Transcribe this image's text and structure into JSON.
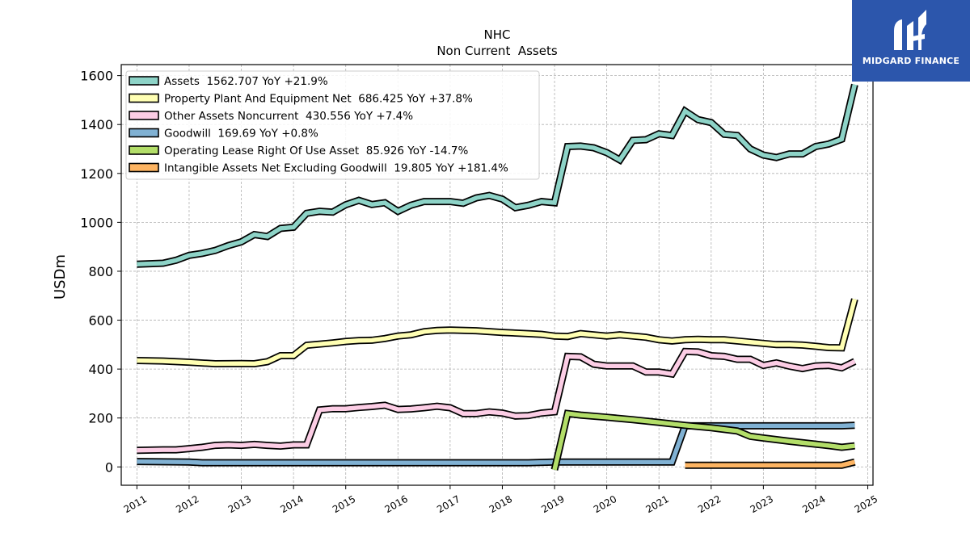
{
  "brand": {
    "name": "MIDGARD FINANCE",
    "bg_color": "#2c56ac"
  },
  "chart_data": {
    "type": "line",
    "title": "NHC",
    "subtitle": "Non Current  Assets",
    "ylabel": "USDm",
    "xlabel": "",
    "xlim": [
      2010.7,
      2025.1
    ],
    "ylim": [
      -75,
      1645
    ],
    "yticks": [
      0,
      200,
      400,
      600,
      800,
      1000,
      1200,
      1400,
      1600
    ],
    "xticks": [
      "2011",
      "2012",
      "2013",
      "2014",
      "2015",
      "2016",
      "2017",
      "2018",
      "2019",
      "2020",
      "2021",
      "2022",
      "2023",
      "2024",
      "2025"
    ],
    "grid": true,
    "legend_position": "top-left",
    "series": [
      {
        "name": "Assets",
        "legend": "Assets  1562.707 YoY +21.9%",
        "color": "#8dd3c7",
        "points": [
          [
            2011.0,
            829
          ],
          [
            2011.5,
            833
          ],
          [
            2011.75,
            845
          ],
          [
            2012.0,
            865
          ],
          [
            2012.25,
            873
          ],
          [
            2012.5,
            885
          ],
          [
            2012.75,
            905
          ],
          [
            2013.0,
            920
          ],
          [
            2013.25,
            950
          ],
          [
            2013.5,
            942
          ],
          [
            2013.75,
            975
          ],
          [
            2014.0,
            980
          ],
          [
            2014.25,
            1037
          ],
          [
            2014.5,
            1045
          ],
          [
            2014.75,
            1042
          ],
          [
            2015.0,
            1072
          ],
          [
            2015.25,
            1090
          ],
          [
            2015.5,
            1073
          ],
          [
            2015.75,
            1080
          ],
          [
            2016.0,
            1045
          ],
          [
            2016.25,
            1070
          ],
          [
            2016.5,
            1085
          ],
          [
            2016.75,
            1085
          ],
          [
            2017.0,
            1085
          ],
          [
            2017.25,
            1078
          ],
          [
            2017.5,
            1100
          ],
          [
            2017.75,
            1110
          ],
          [
            2018.0,
            1095
          ],
          [
            2018.25,
            1060
          ],
          [
            2018.5,
            1070
          ],
          [
            2018.75,
            1085
          ],
          [
            2019.0,
            1080
          ],
          [
            2019.25,
            1310
          ],
          [
            2019.5,
            1312
          ],
          [
            2019.75,
            1305
          ],
          [
            2020.0,
            1285
          ],
          [
            2020.25,
            1255
          ],
          [
            2020.5,
            1335
          ],
          [
            2020.75,
            1338
          ],
          [
            2021.0,
            1362
          ],
          [
            2021.25,
            1355
          ],
          [
            2021.5,
            1455
          ],
          [
            2021.75,
            1420
          ],
          [
            2022.0,
            1408
          ],
          [
            2022.25,
            1360
          ],
          [
            2022.5,
            1355
          ],
          [
            2022.75,
            1300
          ],
          [
            2023.0,
            1275
          ],
          [
            2023.25,
            1265
          ],
          [
            2023.5,
            1280
          ],
          [
            2023.75,
            1280
          ],
          [
            2024.0,
            1310
          ],
          [
            2024.25,
            1320
          ],
          [
            2024.5,
            1340
          ],
          [
            2024.75,
            1563
          ]
        ]
      },
      {
        "name": "Property Plant And Equipment Net",
        "legend": "Property Plant And Equipment Net  686.425 YoY +37.8%",
        "color": "#ffffb3",
        "points": [
          [
            2011.0,
            435
          ],
          [
            2011.5,
            433
          ],
          [
            2012.0,
            428
          ],
          [
            2012.5,
            422
          ],
          [
            2013.0,
            423
          ],
          [
            2013.25,
            422
          ],
          [
            2013.5,
            430
          ],
          [
            2013.75,
            455
          ],
          [
            2014.0,
            455
          ],
          [
            2014.25,
            497
          ],
          [
            2014.5,
            502
          ],
          [
            2014.75,
            507
          ],
          [
            2015.0,
            513
          ],
          [
            2015.25,
            517
          ],
          [
            2015.5,
            518
          ],
          [
            2015.75,
            525
          ],
          [
            2016.0,
            535
          ],
          [
            2016.25,
            540
          ],
          [
            2016.5,
            553
          ],
          [
            2016.75,
            558
          ],
          [
            2017.0,
            560
          ],
          [
            2017.5,
            557
          ],
          [
            2018.0,
            550
          ],
          [
            2018.5,
            545
          ],
          [
            2018.75,
            542
          ],
          [
            2019.0,
            535
          ],
          [
            2019.25,
            533
          ],
          [
            2019.5,
            545
          ],
          [
            2019.75,
            540
          ],
          [
            2020.0,
            535
          ],
          [
            2020.25,
            540
          ],
          [
            2020.5,
            535
          ],
          [
            2020.75,
            530
          ],
          [
            2021.0,
            520
          ],
          [
            2021.25,
            515
          ],
          [
            2021.5,
            520
          ],
          [
            2021.75,
            522
          ],
          [
            2022.0,
            520
          ],
          [
            2022.25,
            520
          ],
          [
            2022.5,
            515
          ],
          [
            2022.75,
            510
          ],
          [
            2023.0,
            505
          ],
          [
            2023.25,
            500
          ],
          [
            2023.5,
            500
          ],
          [
            2023.75,
            498
          ],
          [
            2024.0,
            493
          ],
          [
            2024.25,
            488
          ],
          [
            2024.5,
            487
          ],
          [
            2024.75,
            686
          ]
        ]
      },
      {
        "name": "Other Assets Noncurrent",
        "legend": "Other Assets Noncurrent  430.556 YoY +7.4%",
        "color": "#fccde5",
        "points": [
          [
            2011.0,
            68
          ],
          [
            2011.5,
            70
          ],
          [
            2011.75,
            70
          ],
          [
            2012.0,
            75
          ],
          [
            2012.25,
            80
          ],
          [
            2012.5,
            88
          ],
          [
            2012.75,
            90
          ],
          [
            2013.0,
            88
          ],
          [
            2013.25,
            92
          ],
          [
            2013.5,
            88
          ],
          [
            2013.75,
            85
          ],
          [
            2014.0,
            90
          ],
          [
            2014.25,
            90
          ],
          [
            2014.5,
            233
          ],
          [
            2014.75,
            238
          ],
          [
            2015.0,
            238
          ],
          [
            2015.25,
            243
          ],
          [
            2015.5,
            247
          ],
          [
            2015.75,
            252
          ],
          [
            2016.0,
            235
          ],
          [
            2016.25,
            237
          ],
          [
            2016.5,
            242
          ],
          [
            2016.75,
            248
          ],
          [
            2017.0,
            242
          ],
          [
            2017.25,
            218
          ],
          [
            2017.5,
            218
          ],
          [
            2017.75,
            225
          ],
          [
            2018.0,
            220
          ],
          [
            2018.25,
            208
          ],
          [
            2018.5,
            210
          ],
          [
            2018.75,
            220
          ],
          [
            2019.0,
            225
          ],
          [
            2019.25,
            452
          ],
          [
            2019.5,
            450
          ],
          [
            2019.75,
            420
          ],
          [
            2020.0,
            413
          ],
          [
            2020.25,
            413
          ],
          [
            2020.5,
            413
          ],
          [
            2020.75,
            388
          ],
          [
            2021.0,
            388
          ],
          [
            2021.25,
            380
          ],
          [
            2021.5,
            472
          ],
          [
            2021.75,
            470
          ],
          [
            2022.0,
            455
          ],
          [
            2022.25,
            452
          ],
          [
            2022.5,
            440
          ],
          [
            2022.75,
            440
          ],
          [
            2023.0,
            415
          ],
          [
            2023.25,
            425
          ],
          [
            2023.5,
            412
          ],
          [
            2023.75,
            402
          ],
          [
            2024.0,
            413
          ],
          [
            2024.25,
            415
          ],
          [
            2024.5,
            405
          ],
          [
            2024.75,
            431
          ]
        ]
      },
      {
        "name": "Goodwill",
        "legend": "Goodwill  169.69 YoY +0.8%",
        "color": "#80b1d3",
        "points": [
          [
            2011.0,
            22
          ],
          [
            2012.0,
            20
          ],
          [
            2012.25,
            17
          ],
          [
            2013.0,
            17
          ],
          [
            2014.0,
            17
          ],
          [
            2015.0,
            17
          ],
          [
            2016.0,
            17
          ],
          [
            2017.0,
            17
          ],
          [
            2018.0,
            17
          ],
          [
            2018.5,
            17
          ],
          [
            2019.0,
            20
          ],
          [
            2019.5,
            20
          ],
          [
            2020.0,
            20
          ],
          [
            2020.5,
            20
          ],
          [
            2021.0,
            20
          ],
          [
            2021.25,
            20
          ],
          [
            2021.5,
            168
          ],
          [
            2022.0,
            168
          ],
          [
            2022.5,
            168
          ],
          [
            2023.0,
            168
          ],
          [
            2023.5,
            168
          ],
          [
            2024.0,
            168
          ],
          [
            2024.5,
            168
          ],
          [
            2024.75,
            170
          ]
        ]
      },
      {
        "name": "Operating Lease Right Of Use Asset",
        "legend": "Operating Lease Right Of Use Asset  85.926 YoY -14.7%",
        "color": "#b3de69",
        "points": [
          [
            2019.0,
            -12
          ],
          [
            2019.25,
            218
          ],
          [
            2019.5,
            212
          ],
          [
            2020.0,
            203
          ],
          [
            2020.5,
            193
          ],
          [
            2021.0,
            182
          ],
          [
            2021.5,
            170
          ],
          [
            2022.0,
            160
          ],
          [
            2022.5,
            147
          ],
          [
            2022.75,
            125
          ],
          [
            2023.0,
            118
          ],
          [
            2023.5,
            105
          ],
          [
            2024.0,
            93
          ],
          [
            2024.25,
            87
          ],
          [
            2024.5,
            80
          ],
          [
            2024.75,
            86
          ]
        ]
      },
      {
        "name": "Intangible Assets Net Excluding Goodwill",
        "legend": "Intangible Assets Net Excluding Goodwill  19.805 YoY +181.4%",
        "color": "#fdb462",
        "points": [
          [
            2021.5,
            7
          ],
          [
            2022.0,
            7
          ],
          [
            2023.0,
            7
          ],
          [
            2024.0,
            7
          ],
          [
            2024.5,
            7
          ],
          [
            2024.75,
            20
          ]
        ]
      }
    ]
  }
}
